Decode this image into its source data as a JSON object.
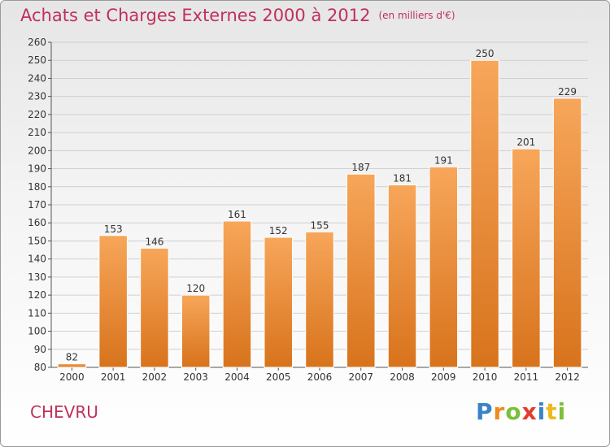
{
  "header": {
    "title": "Achats et Charges Externes 2000 à 2012",
    "unit": "(en milliers d'€)"
  },
  "footer": {
    "commune": "CHEVRU",
    "logo_letters": [
      "P",
      "r",
      "o",
      "x",
      "i",
      "t",
      "i"
    ]
  },
  "colors": {
    "title": "#c0305a",
    "bar_top": "#f7a65a",
    "bar_bottom": "#d8731c",
    "grid": "#d0d0d0"
  },
  "chart_data": {
    "type": "bar",
    "title": "Achats et Charges Externes 2000 à 2012",
    "categories": [
      "2000",
      "2001",
      "2002",
      "2003",
      "2004",
      "2005",
      "2006",
      "2007",
      "2008",
      "2009",
      "2010",
      "2011",
      "2012"
    ],
    "values": [
      82,
      153,
      146,
      120,
      161,
      152,
      155,
      187,
      181,
      191,
      250,
      201,
      229
    ],
    "ylim": [
      80,
      260
    ],
    "yticks": [
      80,
      90,
      100,
      110,
      120,
      130,
      140,
      150,
      160,
      170,
      180,
      190,
      200,
      210,
      220,
      230,
      240,
      250,
      260
    ],
    "grid": true,
    "xlabel": "",
    "ylabel": ""
  }
}
